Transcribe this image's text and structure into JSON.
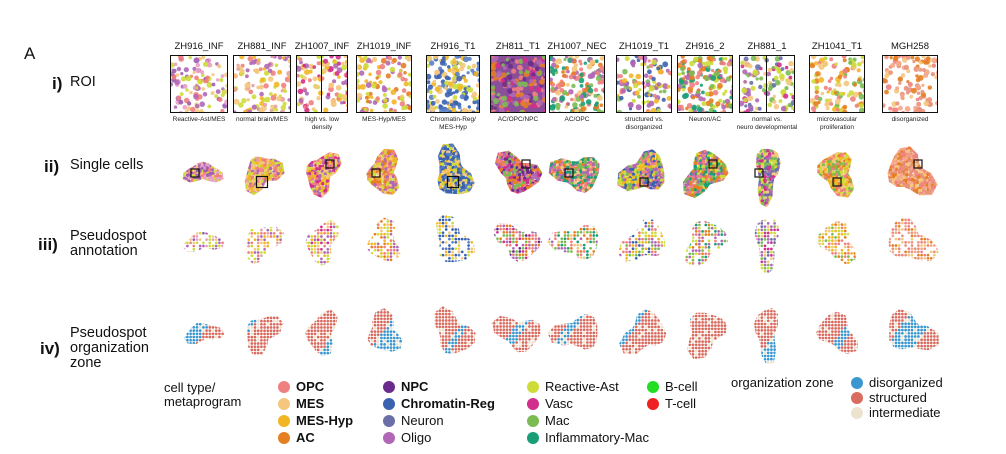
{
  "panel_letter": "A",
  "samples": [
    {
      "name": "ZH916_INF",
      "caption": [
        "Reactive-Ast/MES"
      ],
      "split": false
    },
    {
      "name": "ZH881_INF",
      "caption": [
        "normal brain/MES"
      ],
      "split": false
    },
    {
      "name": "ZH1007_INF",
      "caption": [
        "high vs. low",
        "density"
      ],
      "split": true
    },
    {
      "name": "ZH1019_INF",
      "caption": [
        "MES-Hyp/MES"
      ],
      "split": false
    },
    {
      "name": "ZH916_T1",
      "caption": [
        "Chromatin-Reg/",
        "MES-Hyp"
      ],
      "split": false
    },
    {
      "name": "ZH811_T1",
      "caption": [
        "AC/OPC/NPC"
      ],
      "split": false
    },
    {
      "name": "ZH1007_NEC",
      "caption": [
        "AC/OPC"
      ],
      "split": false
    },
    {
      "name": "ZH1019_T1",
      "caption": [
        "structured vs.",
        "disorganized"
      ],
      "split": true
    },
    {
      "name": "ZH916_2",
      "caption": [
        "Neuron/AC"
      ],
      "split": false
    },
    {
      "name": "ZH881_1",
      "caption": [
        "normal vs.",
        "neuro developmental"
      ],
      "split": true
    },
    {
      "name": "ZH1041_T1",
      "caption": [
        "microvascular",
        "proliferation"
      ],
      "split": false
    },
    {
      "name": "MGH258",
      "caption": [
        "disorganized"
      ],
      "split": false
    }
  ],
  "rows": [
    {
      "num": "i)",
      "label": [
        "ROI"
      ]
    },
    {
      "num": "ii)",
      "label": [
        "Single cells"
      ]
    },
    {
      "num": "iii)",
      "label": [
        "Pseudospot",
        "annotation"
      ]
    },
    {
      "num": "iv)",
      "label": [
        "Pseudospot",
        "organization",
        "zone"
      ]
    }
  ],
  "legend": {
    "cell_title": [
      "cell type/",
      "metaprogram"
    ],
    "cell_types": [
      {
        "label": "OPC",
        "color": "#f08080",
        "bold": true
      },
      {
        "label": "MES",
        "color": "#f5c77e",
        "bold": true
      },
      {
        "label": "MES-Hyp",
        "color": "#f2b624",
        "bold": true
      },
      {
        "label": "AC",
        "color": "#e67e22",
        "bold": true
      },
      {
        "label": "NPC",
        "color": "#6a2c8c",
        "bold": true
      },
      {
        "label": "Chromatin-Reg",
        "color": "#3a62b0",
        "bold": true
      },
      {
        "label": "Neuron",
        "color": "#6b6fa8",
        "bold": false
      },
      {
        "label": "Oligo",
        "color": "#b067b5",
        "bold": false
      },
      {
        "label": "Reactive-Ast",
        "color": "#cddc39",
        "bold": false
      },
      {
        "label": "Vasc",
        "color": "#d12f8c",
        "bold": false
      },
      {
        "label": "Mac",
        "color": "#7cbb54",
        "bold": false
      },
      {
        "label": "Inflammatory-Mac",
        "color": "#1a9e77",
        "bold": false
      },
      {
        "label": "B-cell",
        "color": "#22dd22",
        "bold": false
      },
      {
        "label": "T-cell",
        "color": "#ee2222",
        "bold": false
      }
    ],
    "zone_title": "organization zone",
    "zones": [
      {
        "label": "disorganized",
        "color": "#3a97cf"
      },
      {
        "label": "structured",
        "color": "#d96b5f"
      },
      {
        "label": "intermediate",
        "color": "#ece3cf"
      }
    ]
  }
}
